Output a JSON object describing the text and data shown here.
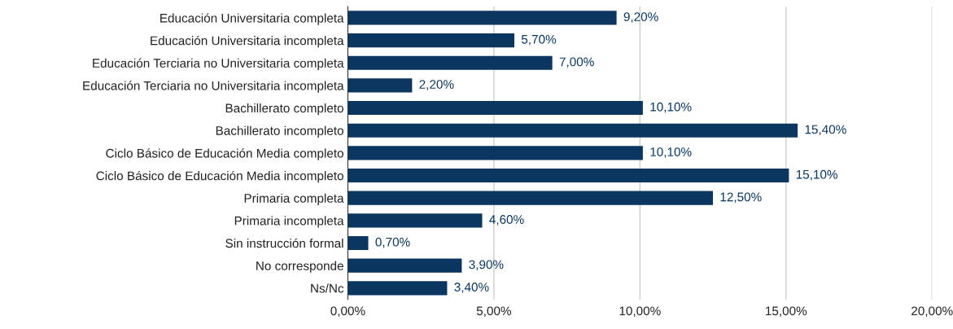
{
  "chart_data": {
    "type": "bar",
    "orientation": "horizontal",
    "categories": [
      "Educación Universitaria completa",
      "Educación Universitaria incompleta",
      "Educación Terciaria no Universitaria completa",
      "Educación Terciaria no Universitaria incompleta",
      "Bachillerato completo",
      "Bachillerato incompleto",
      "Ciclo Básico de Educación Media completo",
      "Ciclo Básico de Educación Media incompleto",
      "Primaria completa",
      "Primaria incompleta",
      "Sin instrucción formal",
      "No corresponde",
      "Ns/Nc"
    ],
    "values": [
      9.2,
      5.7,
      7.0,
      2.2,
      10.1,
      15.4,
      10.1,
      15.1,
      12.5,
      4.6,
      0.7,
      3.9,
      3.4
    ],
    "value_labels": [
      "9,20%",
      "5,70%",
      "7,00%",
      "2,20%",
      "10,10%",
      "15,40%",
      "10,10%",
      "15,10%",
      "12,50%",
      "4,60%",
      "0,70%",
      "3,90%",
      "3,40%"
    ],
    "color": "#0b3660",
    "xlim": [
      0,
      20
    ],
    "xticks": [
      {
        "value": 0,
        "label": "0,00%"
      },
      {
        "value": 5,
        "label": "5,00%"
      },
      {
        "value": 10,
        "label": "10,00%"
      },
      {
        "value": 15,
        "label": "15,00%"
      },
      {
        "value": 20,
        "label": "20,00%"
      }
    ],
    "grid": "x"
  }
}
